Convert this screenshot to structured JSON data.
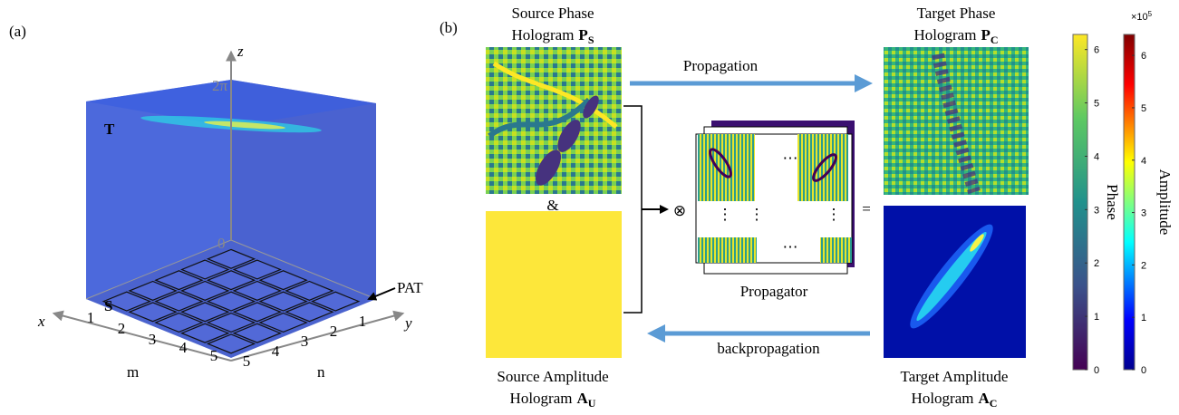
{
  "panel_a": {
    "label": "(a)",
    "axes": {
      "x": "x",
      "y": "y",
      "z": "z",
      "z_top": "2π",
      "z_bottom": "0",
      "m_label": "m",
      "n_label": "n",
      "m_ticks": [
        1,
        2,
        3,
        4,
        5
      ],
      "n_ticks": [
        1,
        2,
        3,
        4,
        5
      ]
    },
    "target_plane": "T",
    "source_plane": "S",
    "array_label": "PAT"
  },
  "panel_b": {
    "label": "(b)",
    "source_phase": {
      "line1": "Source Phase",
      "line2": "Hologram",
      "symbol": "P",
      "subscript": "S"
    },
    "target_phase": {
      "line1": "Target Phase",
      "line2": "Hologram",
      "symbol": "P",
      "subscript": "C"
    },
    "source_amplitude": {
      "line1": "Source Amplitude",
      "line2": "Hologram",
      "symbol": "A",
      "subscript": "U"
    },
    "target_amplitude": {
      "line1": "Target Amplitude",
      "line2": "Hologram",
      "symbol": "A",
      "subscript": "C"
    },
    "and_sign": "&",
    "operator": "⊗",
    "equals": "=",
    "ellipsis_h": "⋯",
    "ellipsis_v": "⋮",
    "propagator": "Propagator",
    "forward": "Propagation",
    "backward": "backpropagation"
  },
  "colorbars": [
    {
      "label": "Phase",
      "lim": [
        0,
        6.283
      ],
      "ticks": [
        0,
        1,
        2,
        3,
        4,
        5,
        6
      ]
    },
    {
      "label": "Amplitude",
      "multiplier": {
        "base": "×10",
        "exponent": "5"
      },
      "lim": [
        0,
        6.4
      ],
      "ticks": [
        0,
        1,
        2,
        3,
        4,
        5,
        6
      ]
    }
  ]
}
